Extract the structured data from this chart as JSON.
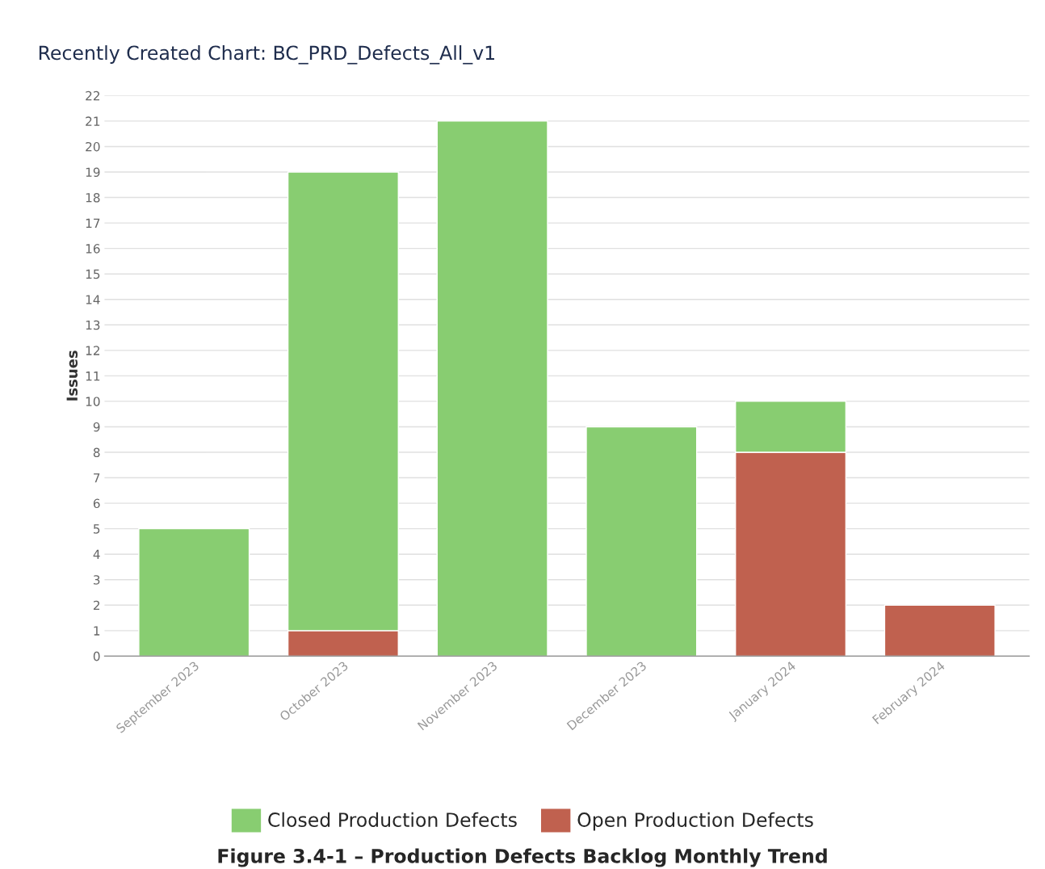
{
  "chart_data": {
    "type": "bar",
    "title": "Recently Created Chart: BC_PRD_Defects_All_v1",
    "ylabel": "Issues",
    "categories": [
      "September 2023",
      "October 2023",
      "November 2023",
      "December 2023",
      "January 2024",
      "February 2024"
    ],
    "series": [
      {
        "name": "Open Production Defects",
        "color": "#c0614f",
        "values": [
          0,
          1,
          0,
          0,
          8,
          2
        ]
      },
      {
        "name": "Closed Production Defects",
        "color": "#88cd71",
        "values": [
          5,
          18,
          21,
          9,
          2,
          0
        ]
      }
    ],
    "stacked": true,
    "ylim": [
      0,
      22
    ],
    "yticks": [
      0,
      1,
      2,
      3,
      4,
      5,
      6,
      7,
      8,
      9,
      10,
      11,
      12,
      13,
      14,
      15,
      16,
      17,
      18,
      19,
      20,
      21,
      22
    ],
    "grid": "y",
    "legend": "bottom",
    "annotations": [
      "Figure 3.4-1 – Production Defects Backlog Monthly Trend"
    ]
  }
}
